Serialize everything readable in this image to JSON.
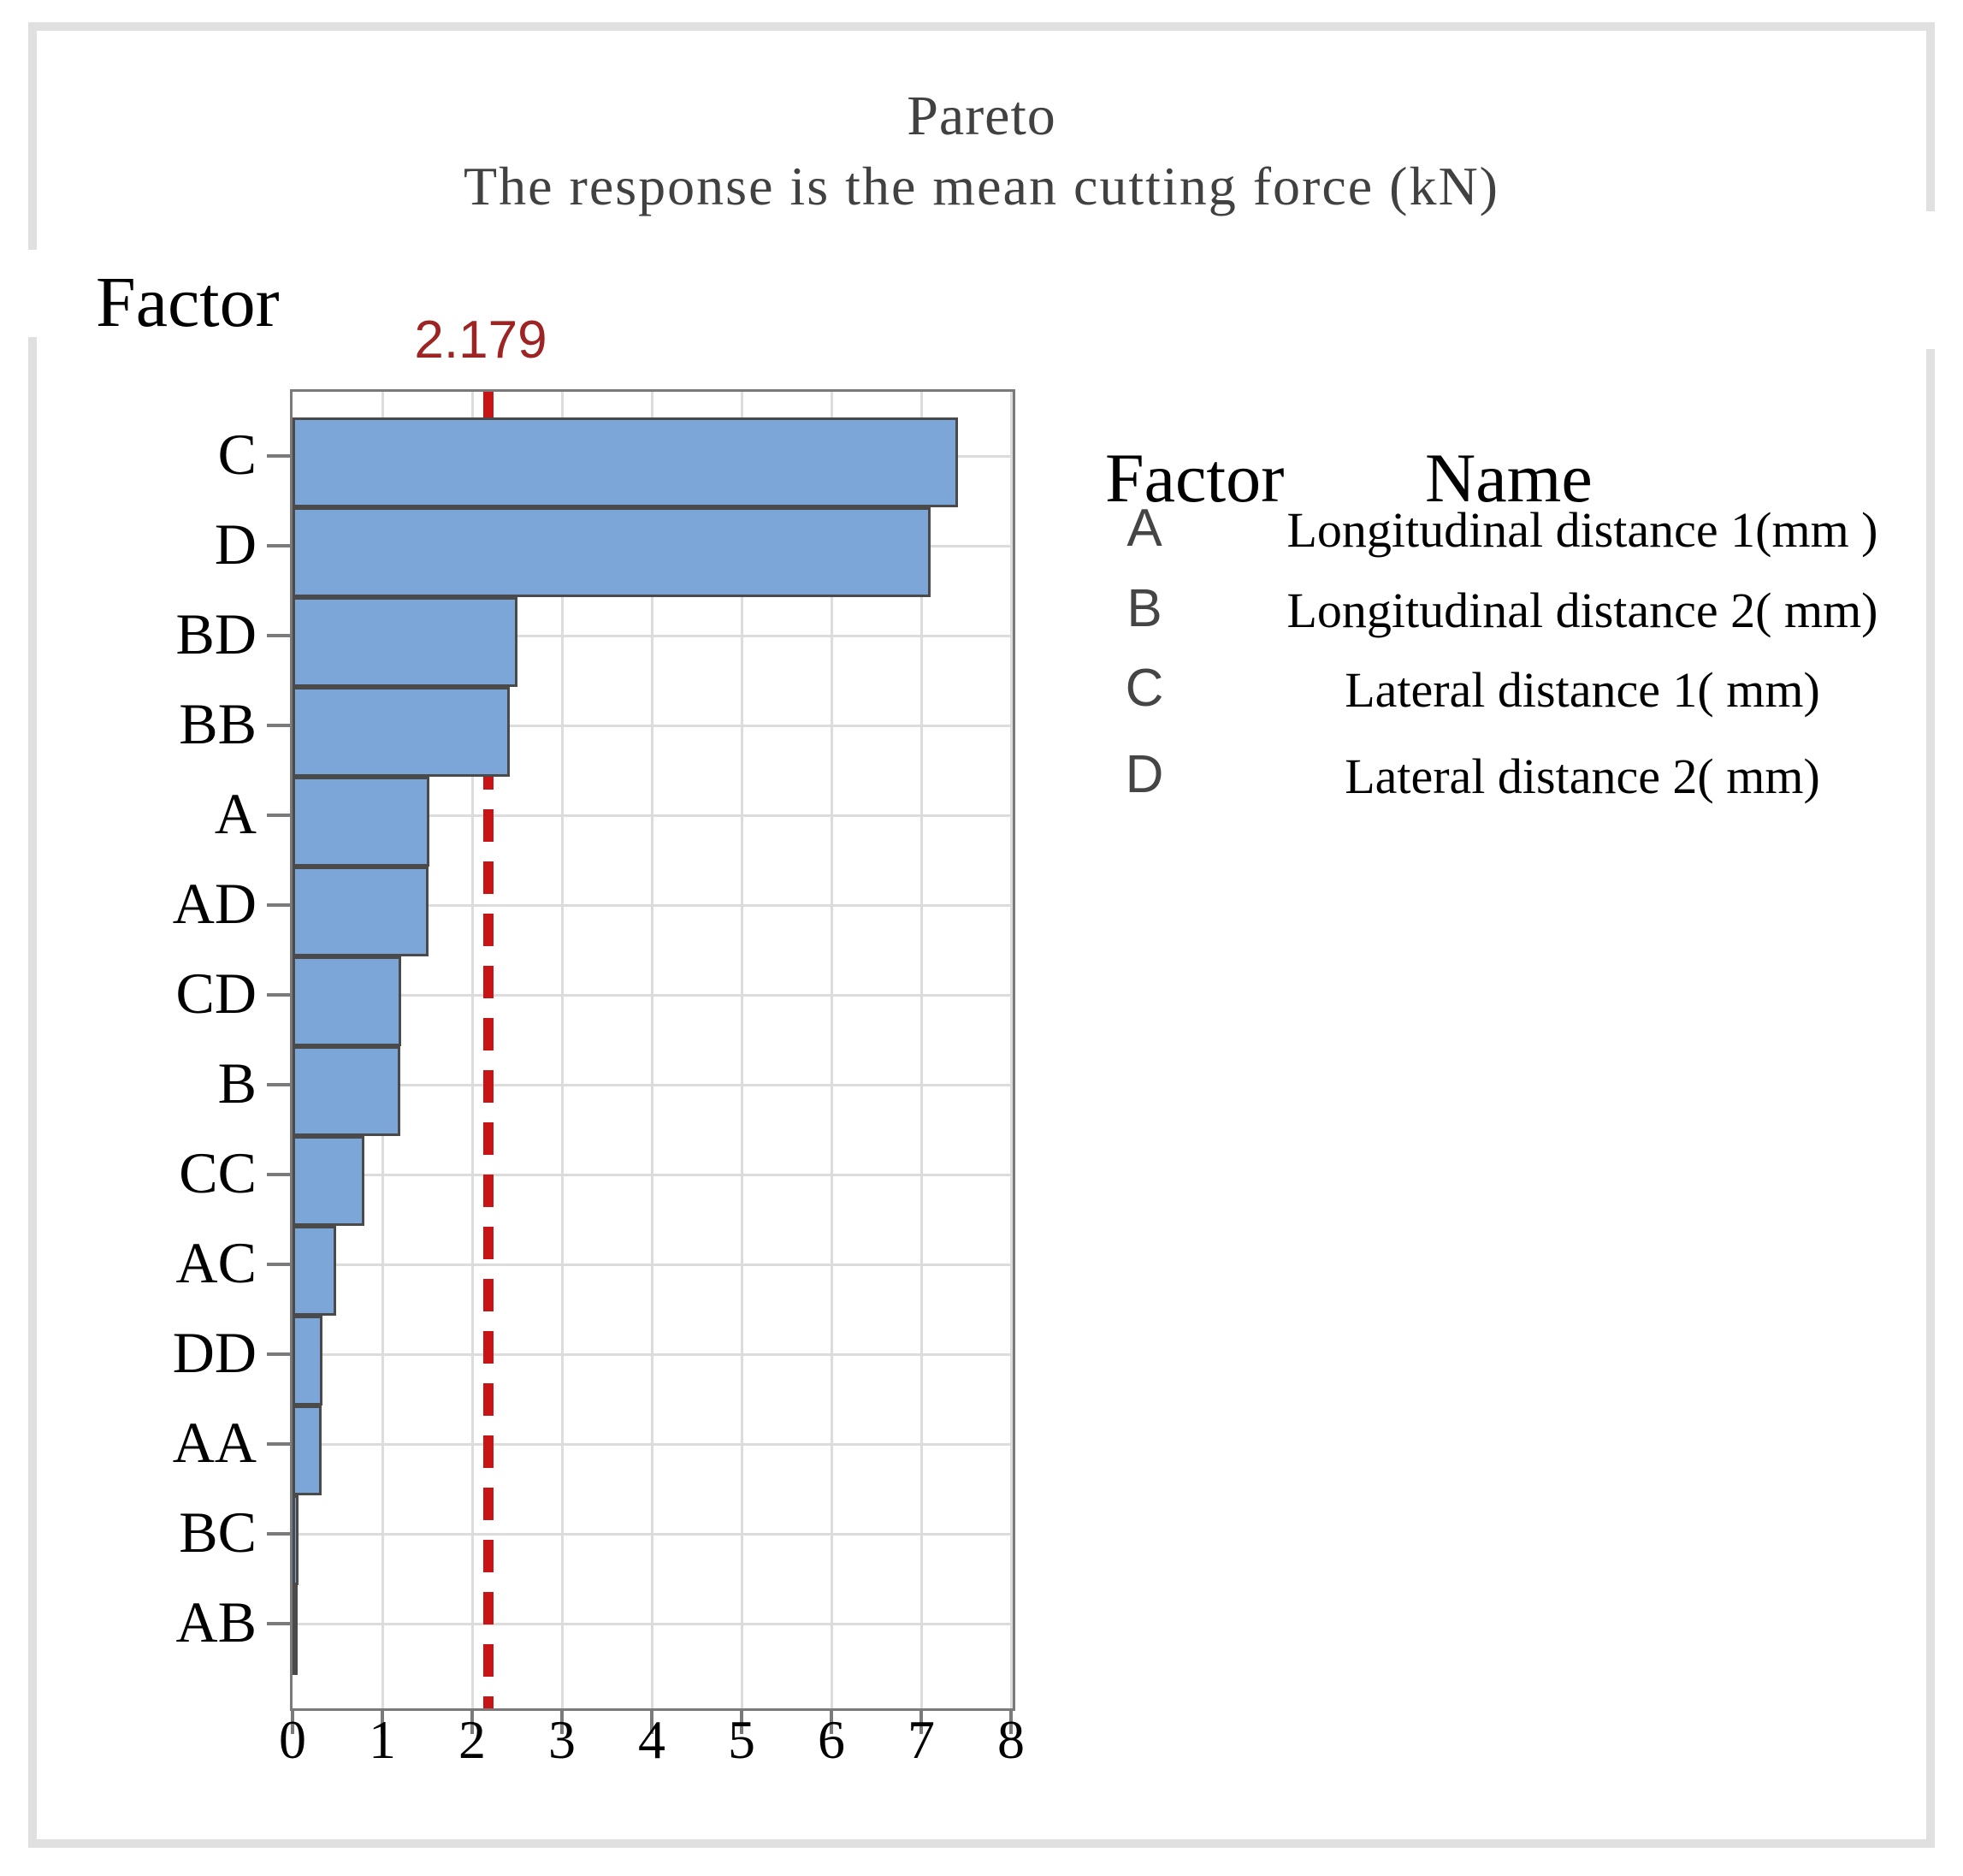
{
  "chart_data": {
    "type": "bar",
    "orientation": "horizontal",
    "title": "Pareto",
    "subtitle": "The response is the mean cutting force (kN)",
    "axis_label": "Factor",
    "categories": [
      "C",
      "D",
      "BD",
      "BB",
      "A",
      "AD",
      "CD",
      "B",
      "CC",
      "AC",
      "DD",
      "AA",
      "BC",
      "AB"
    ],
    "values": [
      7.41,
      7.1,
      2.5,
      2.42,
      1.52,
      1.51,
      1.21,
      1.2,
      0.8,
      0.49,
      0.33,
      0.32,
      0.07,
      0.02
    ],
    "xlabel": "",
    "xlim": [
      0,
      8
    ],
    "x_ticks": [
      "0",
      "1",
      "2",
      "3",
      "4",
      "5",
      "6",
      "7",
      "8"
    ],
    "grid": true,
    "reference_line": {
      "value": 2.179,
      "label": "2.179"
    },
    "legend": {
      "col1_header": "Factor",
      "col2_header": "Name",
      "entries": [
        {
          "factor": "A",
          "name": "Longitudinal distance 1(mm )"
        },
        {
          "factor": "B",
          "name": "Longitudinal distance 2( mm)"
        },
        {
          "factor": "C",
          "name": "Lateral distance 1( mm)"
        },
        {
          "factor": "D",
          "name": "Lateral distance 2( mm)"
        }
      ]
    }
  },
  "colors": {
    "bar_fill": "#7CA6D8",
    "bar_border": "#4A4A4A",
    "plot_border": "#7A7A7A",
    "gridline": "#DCDCDC",
    "reference_line": "#C81414",
    "reference_label": "#9E2424",
    "title_text": "#414141",
    "frame": "#E0E0E0",
    "axis_text": "#000000",
    "legend_letter": "#454545",
    "tick": "#7A7A7A"
  }
}
